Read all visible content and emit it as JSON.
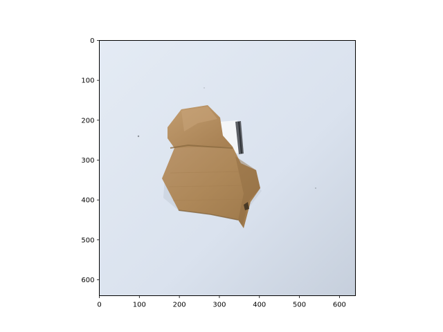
{
  "figure": {
    "background_color": "#ffffff"
  },
  "image": {
    "subject": "crumpled brown cardboard piece on light surface",
    "background_color": "#dfe6ef",
    "object_color": "#b08a5c"
  },
  "axes": {
    "x_ticks": [
      "0",
      "100",
      "200",
      "300",
      "400",
      "500",
      "600"
    ],
    "y_ticks": [
      "0",
      "100",
      "200",
      "300",
      "400",
      "500",
      "600"
    ],
    "x_range": [
      0,
      640
    ],
    "y_range": [
      0,
      640
    ]
  }
}
